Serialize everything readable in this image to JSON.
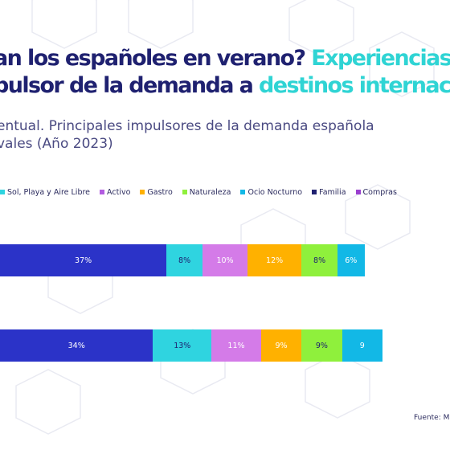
{
  "title": {
    "line1_dark": "an los españoles en verano? ",
    "line1_accent": "Experiencias",
    "line2_dark": "pulsor de la demanda a ",
    "line2_accent": "destinos internac"
  },
  "subtitle": {
    "line1": "entual. Principales impulsores de la demanda española",
    "line2": "vales (Año 2023)"
  },
  "source": "Fuente: Ma",
  "colors": {
    "title_dark": "#1f2170",
    "accent": "#2fd4d4"
  },
  "chart_data": {
    "type": "bar",
    "orientation": "horizontal-stacked-percent",
    "series": [
      {
        "name": "Sol, Playa y Aire Libre",
        "color": "#2fd4e0",
        "values": [
          null,
          null
        ]
      },
      {
        "name": "Activo",
        "color": "#b25be0",
        "values": [
          null,
          null
        ]
      },
      {
        "name": "Gastro",
        "color": "#ffb100",
        "values": [
          null,
          null
        ]
      },
      {
        "name": "Naturaleza",
        "color": "#8ff03c",
        "values": [
          null,
          null
        ]
      },
      {
        "name": "Ocio Nocturno",
        "color": "#12b8e6",
        "values": [
          null,
          null
        ]
      },
      {
        "name": "Familia",
        "color": "#1f2170",
        "values": [
          null,
          null
        ]
      },
      {
        "name": "Compras",
        "color": "#9a3fcf",
        "values": [
          null,
          null
        ]
      }
    ],
    "rows": [
      {
        "segments": [
          {
            "value": 37,
            "label": "37%",
            "color": "#2b33c8",
            "dark_text": false
          },
          {
            "value": 8,
            "label": "8%",
            "color": "#2fd4e0",
            "dark_text": true
          },
          {
            "value": 10,
            "label": "10%",
            "color": "#d47be8",
            "dark_text": false
          },
          {
            "value": 12,
            "label": "12%",
            "color": "#ffb100",
            "dark_text": false
          },
          {
            "value": 8,
            "label": "8%",
            "color": "#8ff03c",
            "dark_text": true
          },
          {
            "value": 6,
            "label": "6%",
            "color": "#12b8e6",
            "dark_text": false
          }
        ]
      },
      {
        "segments": [
          {
            "value": 34,
            "label": "34%",
            "color": "#2b33c8",
            "dark_text": false
          },
          {
            "value": 13,
            "label": "13%",
            "color": "#2fd4e0",
            "dark_text": true
          },
          {
            "value": 11,
            "label": "11%",
            "color": "#d47be8",
            "dark_text": false
          },
          {
            "value": 9,
            "label": "9%",
            "color": "#ffb100",
            "dark_text": false
          },
          {
            "value": 9,
            "label": "9%",
            "color": "#8ff03c",
            "dark_text": true
          },
          {
            "value": 9,
            "label": "9",
            "color": "#12b8e6",
            "dark_text": false
          }
        ]
      }
    ]
  }
}
